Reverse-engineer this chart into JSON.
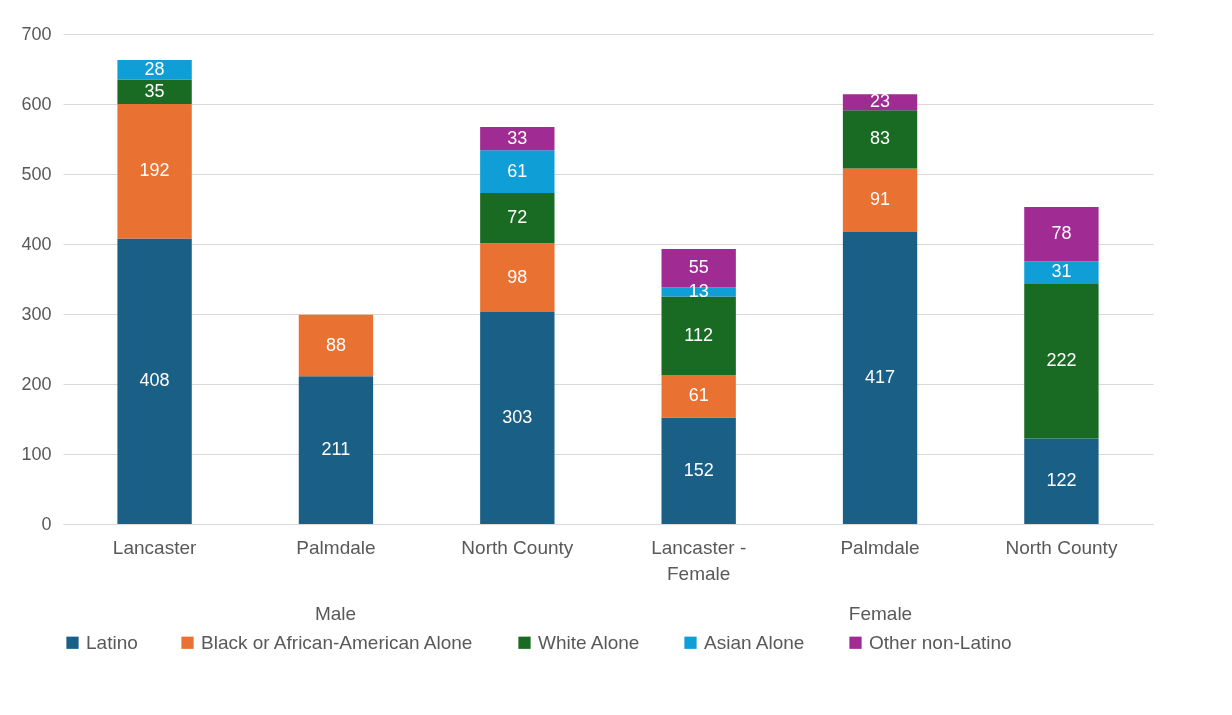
{
  "chart_data": {
    "type": "bar",
    "stacked": true,
    "data_labels": true,
    "grid": "y",
    "legend": "bottom",
    "categories": [
      "Lancaster",
      "Palmdale",
      "North County",
      "Lancaster - Female",
      "Palmdale",
      "North County"
    ],
    "annotations": [
      "Male",
      "Female"
    ],
    "ylim": [
      0,
      700
    ],
    "yticks": [
      0,
      100,
      200,
      300,
      400,
      500,
      600,
      700
    ],
    "series": [
      {
        "name": "Latino",
        "color": "#1a5f86",
        "values": [
          408,
          211,
          303,
          152,
          417,
          122
        ]
      },
      {
        "name": "Black or African-American Alone",
        "color": "#e97132",
        "values": [
          192,
          88,
          98,
          61,
          91,
          null
        ]
      },
      {
        "name": "White Alone",
        "color": "#196b24",
        "values": [
          35,
          null,
          72,
          112,
          83,
          222
        ]
      },
      {
        "name": "Asian Alone",
        "color": "#0f9ed5",
        "values": [
          28,
          null,
          61,
          13,
          null,
          31
        ]
      },
      {
        "name": "Other non-Latino",
        "color": "#a02b93",
        "values": [
          null,
          null,
          33,
          55,
          23,
          78
        ]
      }
    ]
  }
}
